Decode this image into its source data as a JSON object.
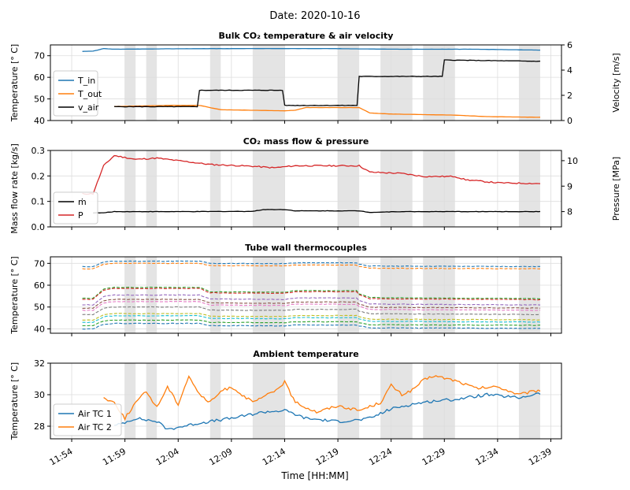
{
  "figure": {
    "suptitle": "Date: 2020-10-16",
    "xlabel": "Time [HH:MM]",
    "xticks": [
      "11:54",
      "11:59",
      "12:04",
      "12:09",
      "12:14",
      "12:19",
      "12:24",
      "12:29",
      "12:34",
      "12:39"
    ]
  },
  "chart_data": [
    {
      "type": "line",
      "title": "Bulk CO₂ temperature & air velocity",
      "xlabel": "Time [HH:MM]",
      "ylabel": "Temperature [° C]",
      "ylabel2": "Velocity [m/s]",
      "xlim": [
        "11:52",
        "12:40"
      ],
      "ylim": [
        40,
        75
      ],
      "yticks": [
        40,
        50,
        60,
        70
      ],
      "ylim2": [
        0,
        6
      ],
      "yticks2": [
        0,
        2,
        4,
        6
      ],
      "grid": true,
      "legend_position": "center-left",
      "shaded_intervals": [
        [
          "11:59",
          "12:00"
        ],
        [
          "12:01",
          "12:02"
        ],
        [
          "12:07",
          "12:08"
        ],
        [
          "12:11",
          "12:14"
        ],
        [
          "12:19",
          "12:21"
        ],
        [
          "12:23",
          "12:26"
        ],
        [
          "12:27",
          "12:30"
        ],
        [
          "12:36",
          "12:38"
        ]
      ],
      "series": [
        {
          "name": "T_in",
          "color": "#1f77b4",
          "axis": "left",
          "style": "solid",
          "points": [
            [
              "11:55",
              72
            ],
            [
              "11:56",
              72.1
            ],
            [
              "11:57",
              73.3
            ],
            [
              "11:58",
              73
            ],
            [
              "12:03",
              73.2
            ],
            [
              "12:10",
              73.3
            ],
            [
              "12:18",
              73.3
            ],
            [
              "12:25",
              73
            ],
            [
              "12:32",
              73
            ],
            [
              "12:38",
              72.6
            ]
          ]
        },
        {
          "name": "T_out",
          "color": "#ff7f0e",
          "axis": "left",
          "style": "solid",
          "points": [
            [
              "11:58",
              46.5
            ],
            [
              "12:03",
              47
            ],
            [
              "12:06",
              47
            ],
            [
              "12:07",
              46
            ],
            [
              "12:08",
              45
            ],
            [
              "12:14",
              44.5
            ],
            [
              "12:15",
              44.8
            ],
            [
              "12:16",
              46
            ],
            [
              "12:21",
              46
            ],
            [
              "12:22",
              43.5
            ],
            [
              "12:24",
              43
            ],
            [
              "12:30",
              42.5
            ],
            [
              "12:33",
              41.8
            ],
            [
              "12:38",
              41.5
            ]
          ]
        },
        {
          "name": "v_air",
          "color": "#000000",
          "axis": "right",
          "style": "solid",
          "points": [
            [
              "11:58",
              1.1
            ],
            [
              "12:06",
              1.1
            ],
            [
              "12:06",
              2.4
            ],
            [
              "12:14",
              2.4
            ],
            [
              "12:14",
              1.2
            ],
            [
              "12:21",
              1.2
            ],
            [
              "12:21",
              3.5
            ],
            [
              "12:29",
              3.5
            ],
            [
              "12:29",
              4.8
            ],
            [
              "12:38",
              4.7
            ]
          ]
        }
      ]
    },
    {
      "type": "line",
      "title": "CO₂ mass flow & pressure",
      "ylabel": "Mass flow rate [kg/s]",
      "ylabel2": "Pressure [MPa]",
      "xlim": [
        "11:52",
        "12:40"
      ],
      "ylim": [
        0,
        0.3
      ],
      "yticks": [
        0.0,
        0.1,
        0.2,
        0.3
      ],
      "ylim2": [
        7.4,
        10.4
      ],
      "yticks2": [
        8,
        9,
        10
      ],
      "grid": true,
      "legend_position": "lower-left",
      "series": [
        {
          "name": "ṁ",
          "color": "#000000",
          "axis": "left",
          "style": "solid",
          "points": [
            [
              "11:56",
              0.055
            ],
            [
              "11:57",
              0.055
            ],
            [
              "11:58",
              0.06
            ],
            [
              "12:05",
              0.06
            ],
            [
              "12:11",
              0.061
            ],
            [
              "12:12",
              0.068
            ],
            [
              "12:14",
              0.068
            ],
            [
              "12:15",
              0.063
            ],
            [
              "12:21",
              0.063
            ],
            [
              "12:22",
              0.057
            ],
            [
              "12:25",
              0.06
            ],
            [
              "12:38",
              0.06
            ]
          ]
        },
        {
          "name": "P",
          "color": "#d62728",
          "axis": "right",
          "style": "solid",
          "points": [
            [
              "11:55",
              8.7
            ],
            [
              "11:56",
              8.7
            ],
            [
              "11:57",
              9.8
            ],
            [
              "11:58",
              10.2
            ],
            [
              "12:00",
              10.05
            ],
            [
              "12:02",
              10.1
            ],
            [
              "12:05",
              9.95
            ],
            [
              "12:07",
              9.85
            ],
            [
              "12:11",
              9.78
            ],
            [
              "12:13",
              9.72
            ],
            [
              "12:15",
              9.8
            ],
            [
              "12:21",
              9.8
            ],
            [
              "12:22",
              9.55
            ],
            [
              "12:25",
              9.5
            ],
            [
              "12:27",
              9.38
            ],
            [
              "12:30",
              9.38
            ],
            [
              "12:31",
              9.25
            ],
            [
              "12:34",
              9.13
            ],
            [
              "12:38",
              9.1
            ]
          ]
        }
      ]
    },
    {
      "type": "line",
      "title": "Tube wall thermocouples",
      "ylabel": "Temperature [° C]",
      "xlim": [
        "11:52",
        "12:40"
      ],
      "ylim": [
        38,
        73
      ],
      "yticks": [
        40,
        50,
        60,
        70
      ],
      "grid": true,
      "line_style": "dashed",
      "series": [
        {
          "color": "#1f77b4",
          "base": 68.5,
          "step": 2.5,
          "mid": 1.0,
          "shift": -1.5
        },
        {
          "color": "#ff7f0e",
          "base": 67.5,
          "step": 2.5,
          "mid": 1.0,
          "shift": -1.5
        },
        {
          "color": "#2ca02c",
          "base": 54.0,
          "step": 5.0,
          "mid": 3.5,
          "shift": -3.5
        },
        {
          "color": "#d62728",
          "base": 53.5,
          "step": 5.0,
          "mid": 3.5,
          "shift": -3.5
        },
        {
          "color": "#9467bd",
          "base": 51.0,
          "step": 4.5,
          "mid": 3.0,
          "shift": -3.0
        },
        {
          "color": "#8c564b",
          "base": 49.5,
          "step": 4.0,
          "mid": 2.5,
          "shift": -2.5
        },
        {
          "color": "#e377c2",
          "base": 48.5,
          "step": 4.0,
          "mid": 2.5,
          "shift": -2.5
        },
        {
          "color": "#7f7f7f",
          "base": 46.5,
          "step": 3.5,
          "mid": 2.0,
          "shift": -2.0
        },
        {
          "color": "#bcbd22",
          "base": 44.0,
          "step": 3.0,
          "mid": 1.5,
          "shift": -1.5
        },
        {
          "color": "#17becf",
          "base": 43.0,
          "step": 3.0,
          "mid": 1.5,
          "shift": -1.5
        },
        {
          "color": "#2ca02c",
          "base": 41.5,
          "step": 2.5,
          "mid": 1.0,
          "shift": -1.2
        },
        {
          "color": "#1f77b4",
          "base": 40.0,
          "step": 2.5,
          "mid": 1.0,
          "shift": -1.0
        }
      ]
    },
    {
      "type": "line",
      "title": "Ambient temperature",
      "ylabel": "Temperature [° C]",
      "xlim": [
        "11:52",
        "12:40"
      ],
      "ylim": [
        27.2,
        32
      ],
      "yticks": [
        28,
        30,
        32
      ],
      "grid": true,
      "legend_position": "lower-left",
      "series": [
        {
          "name": "Air TC 1",
          "color": "#1f77b4",
          "style": "solid",
          "points": [
            [
              "11:58",
              28.0
            ],
            [
              "12:00",
              28.5
            ],
            [
              "12:02",
              28.3
            ],
            [
              "12:03",
              27.8
            ],
            [
              "12:06",
              28.2
            ],
            [
              "12:09",
              28.5
            ],
            [
              "12:12",
              28.9
            ],
            [
              "12:14",
              29.0
            ],
            [
              "12:16",
              28.5
            ],
            [
              "12:19",
              28.3
            ],
            [
              "12:21",
              28.4
            ],
            [
              "12:22",
              28.5
            ],
            [
              "12:24",
              29.1
            ],
            [
              "12:26",
              29.4
            ],
            [
              "12:28",
              29.6
            ],
            [
              "12:30",
              29.7
            ],
            [
              "12:33",
              30.0
            ],
            [
              "12:36",
              29.8
            ],
            [
              "12:38",
              30.1
            ]
          ]
        },
        {
          "name": "Air TC 2",
          "color": "#ff7f0e",
          "style": "solid",
          "points": [
            [
              "11:57",
              29.8
            ],
            [
              "11:58",
              29.5
            ],
            [
              "11:59",
              28.5
            ],
            [
              "12:00",
              29.5
            ],
            [
              "12:01",
              30.2
            ],
            [
              "12:02",
              29.2
            ],
            [
              "12:03",
              30.5
            ],
            [
              "12:04",
              29.4
            ],
            [
              "12:05",
              31.2
            ],
            [
              "12:06",
              30.0
            ],
            [
              "12:07",
              29.5
            ],
            [
              "12:08",
              30.2
            ],
            [
              "12:09",
              30.5
            ],
            [
              "12:11",
              29.5
            ],
            [
              "12:13",
              30.2
            ],
            [
              "12:14",
              30.8
            ],
            [
              "12:15",
              29.5
            ],
            [
              "12:17",
              28.9
            ],
            [
              "12:19",
              29.3
            ],
            [
              "12:21",
              29.0
            ],
            [
              "12:23",
              29.5
            ],
            [
              "12:24",
              30.6
            ],
            [
              "12:25",
              30.0
            ],
            [
              "12:26",
              30.3
            ],
            [
              "12:27",
              30.9
            ],
            [
              "12:28",
              31.2
            ],
            [
              "12:30",
              30.9
            ],
            [
              "12:32",
              30.4
            ],
            [
              "12:34",
              30.5
            ],
            [
              "12:36",
              30.0
            ],
            [
              "12:38",
              30.3
            ]
          ]
        }
      ]
    }
  ]
}
